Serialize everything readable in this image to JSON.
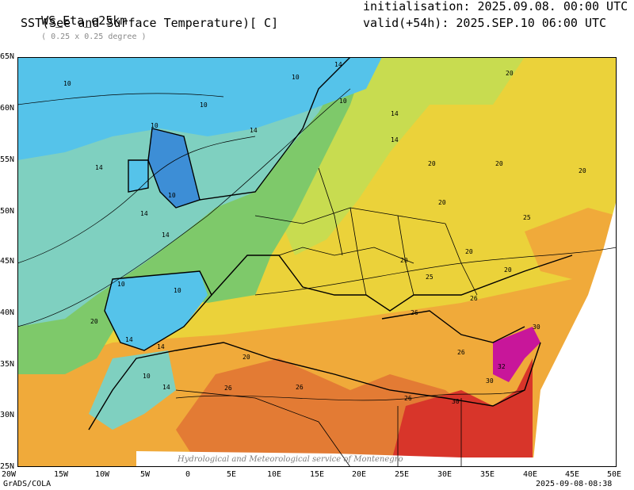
{
  "header": {
    "model": "WS_Eta_e25km",
    "resolution": "( 0.25 x 0.25 degree )",
    "variable": "SST(See and Surface Temperature)[ C]",
    "initialisation": "initialisation: 2025.09.08. 00:00 UTC",
    "valid": "valid(+54h): 2025.SEP.10 06:00 UTC"
  },
  "axes": {
    "lat_labels": [
      "65N",
      "60N",
      "55N",
      "50N",
      "45N",
      "40N",
      "35N",
      "30N",
      "25N"
    ],
    "lon_labels": [
      "20W",
      "15W",
      "10W",
      "5W",
      "0",
      "5E",
      "10E",
      "15E",
      "20E",
      "25E",
      "30E",
      "35E",
      "40E",
      "45E",
      "50E"
    ]
  },
  "contour_labels": [
    "10",
    "10",
    "14",
    "10",
    "10",
    "14",
    "14",
    "14",
    "10",
    "10",
    "14",
    "14",
    "14",
    "20",
    "20",
    "20",
    "20",
    "20",
    "25",
    "20",
    "20",
    "20",
    "25",
    "26",
    "26",
    "26",
    "30",
    "32",
    "30",
    "30",
    "26",
    "26",
    "26",
    "20",
    "14",
    "10",
    "10",
    "14",
    "20",
    "10",
    "14"
  ],
  "footer": {
    "left": "GrADS/COLA",
    "right": "2025-09-08-08:38",
    "watermark": "Hydrological and Meteorological service of Montenegro"
  },
  "colors": {
    "cold": "#3d8ed6",
    "cool": "#55c3ea",
    "teal": "#7fd0c0",
    "green": "#7ec96a",
    "yellow_green": "#c8dc50",
    "yellow": "#ebd23a",
    "orange": "#f0aa3a",
    "dark_orange": "#e37b34",
    "red": "#d8352a",
    "magenta": "#c8169a"
  }
}
